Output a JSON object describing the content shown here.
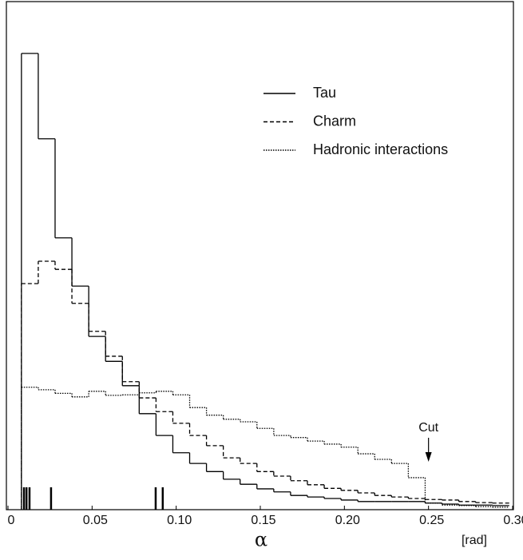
{
  "chart_data": {
    "type": "histogram",
    "xlabel": "α",
    "xunit": "[rad]",
    "bins": [
      0.008,
      0.018,
      0.028,
      0.038,
      0.048,
      0.058,
      0.068,
      0.078,
      0.088,
      0.098,
      0.108,
      0.118,
      0.128,
      0.138,
      0.148,
      0.158,
      0.168,
      0.178,
      0.188,
      0.198,
      0.208,
      0.218,
      0.228,
      0.238,
      0.248,
      0.258,
      0.268,
      0.278,
      0.288,
      0.298
    ],
    "series": [
      {
        "name": "Tau",
        "color": "#000000",
        "style": "solid",
        "values": [
          89.8,
          73.0,
          53.5,
          44.0,
          34.1,
          29.2,
          24.4,
          18.9,
          14.6,
          11.2,
          9.1,
          7.5,
          6.0,
          5.0,
          4.1,
          3.5,
          2.8,
          2.5,
          2.2,
          1.9,
          1.6,
          1.6,
          1.6,
          1.6,
          1.3,
          1.1,
          0.9,
          0.9,
          0.8
        ]
      },
      {
        "name": "Charm",
        "color": "#000000",
        "style": "dashed",
        "values": [
          44.5,
          48.9,
          47.3,
          40.6,
          35.1,
          30.2,
          25.2,
          22.0,
          19.3,
          17.0,
          14.6,
          12.6,
          10.2,
          9.1,
          7.5,
          6.6,
          5.7,
          4.9,
          4.2,
          3.8,
          3.3,
          2.8,
          2.5,
          2.2,
          2.0,
          1.9,
          1.6,
          1.4,
          1.3
        ]
      },
      {
        "name": "Hadronic interactions",
        "color": "#000000",
        "style": "dotted",
        "values": [
          24.1,
          23.6,
          22.9,
          22.2,
          23.3,
          22.5,
          22.6,
          23.0,
          23.3,
          22.6,
          20.1,
          18.6,
          17.8,
          17.3,
          16.0,
          14.6,
          14.2,
          13.5,
          12.9,
          12.3,
          11.0,
          9.9,
          9.1,
          6.3,
          1.3,
          0.9,
          0.8,
          0.6,
          0.5
        ]
      }
    ],
    "events": [
      0.0095,
      0.011,
      0.0128,
      0.0256,
      0.0878,
      0.092
    ],
    "annotation": {
      "text": "Cut",
      "x": 0.25
    },
    "xlim": [
      0,
      0.3
    ],
    "ylim": [
      0,
      100
    ],
    "xticks": [
      0,
      0.05,
      {
        "value": 0.1,
        "label": "0.10"
      },
      0.15,
      {
        "value": 0.2,
        "label": "0.20"
      },
      0.25,
      {
        "value": 0.3,
        "label": "0.30"
      }
    ],
    "legend": "upper right"
  }
}
